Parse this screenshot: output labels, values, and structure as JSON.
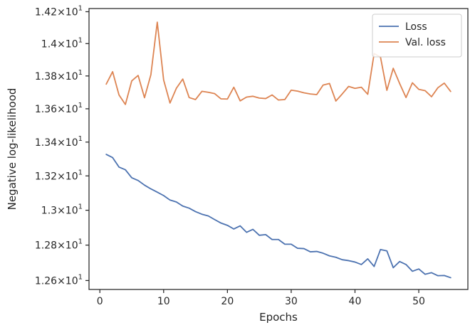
{
  "chart_data": {
    "type": "line",
    "title": "",
    "xlabel": "Epochs",
    "ylabel": "Negative log-likelihood",
    "xlim": [
      -1.7,
      57.7
    ],
    "ylim": [
      12.55,
      14.22
    ],
    "y_scale": "log",
    "grid": false,
    "legend_position": "top-right",
    "x_ticks": [
      0,
      10,
      20,
      30,
      40,
      50
    ],
    "x_tick_labels": [
      "0",
      "10",
      "20",
      "30",
      "40",
      "50"
    ],
    "y_ticks": [
      12.6,
      12.8,
      13.0,
      13.2,
      13.4,
      13.6,
      13.8,
      14.0,
      14.2
    ],
    "y_tick_labels": [
      {
        "mantissa": "1.26",
        "sep": "×",
        "base": "10",
        "exp": "1"
      },
      {
        "mantissa": "1.28",
        "sep": "×",
        "base": "10",
        "exp": "1"
      },
      {
        "mantissa": "1.3",
        "sep": "×",
        "base": "10",
        "exp": "1"
      },
      {
        "mantissa": "1.32",
        "sep": "×",
        "base": "10",
        "exp": "1"
      },
      {
        "mantissa": "1.34",
        "sep": "×",
        "base": "10",
        "exp": "1"
      },
      {
        "mantissa": "1.36",
        "sep": "×",
        "base": "10",
        "exp": "1"
      },
      {
        "mantissa": "1.38",
        "sep": "×",
        "base": "10",
        "exp": "1"
      },
      {
        "mantissa": "1.4",
        "sep": "×",
        "base": "10",
        "exp": "1"
      },
      {
        "mantissa": "1.42",
        "sep": "×",
        "base": "10",
        "exp": "1"
      }
    ],
    "x": [
      1,
      2,
      3,
      4,
      5,
      6,
      7,
      8,
      9,
      10,
      11,
      12,
      13,
      14,
      15,
      16,
      17,
      18,
      19,
      20,
      21,
      22,
      23,
      24,
      25,
      26,
      27,
      28,
      29,
      30,
      31,
      32,
      33,
      34,
      35,
      36,
      37,
      38,
      39,
      40,
      41,
      42,
      43,
      44,
      45,
      46,
      47,
      48,
      49,
      50,
      51,
      52,
      53,
      54,
      55
    ],
    "series": [
      {
        "name": "Loss",
        "color": "#4c72b0",
        "values": [
          13.327,
          13.308,
          13.252,
          13.236,
          13.189,
          13.173,
          13.146,
          13.124,
          13.105,
          13.085,
          13.059,
          13.048,
          13.024,
          13.012,
          12.992,
          12.977,
          12.967,
          12.946,
          12.926,
          12.913,
          12.892,
          12.91,
          12.873,
          12.89,
          12.856,
          12.86,
          12.832,
          12.832,
          12.805,
          12.805,
          12.782,
          12.78,
          12.762,
          12.764,
          12.754,
          12.739,
          12.731,
          12.717,
          12.712,
          12.704,
          12.69,
          12.722,
          12.679,
          12.775,
          12.767,
          12.672,
          12.707,
          12.69,
          12.652,
          12.665,
          12.635,
          12.644,
          12.627,
          12.628,
          12.616
        ]
      },
      {
        "name": "Val. loss",
        "color": "#dd8452",
        "values": [
          13.75,
          13.826,
          13.684,
          13.626,
          13.77,
          13.803,
          13.667,
          13.808,
          14.134,
          13.775,
          13.635,
          13.725,
          13.781,
          13.668,
          13.656,
          13.706,
          13.7,
          13.692,
          13.66,
          13.659,
          13.731,
          13.648,
          13.671,
          13.676,
          13.665,
          13.662,
          13.684,
          13.653,
          13.656,
          13.713,
          13.707,
          13.697,
          13.69,
          13.686,
          13.744,
          13.754,
          13.647,
          13.69,
          13.736,
          13.724,
          13.731,
          13.688,
          13.938,
          13.916,
          13.712,
          13.847,
          13.754,
          13.668,
          13.758,
          13.718,
          13.71,
          13.673,
          13.728,
          13.756,
          13.705
        ]
      }
    ]
  }
}
